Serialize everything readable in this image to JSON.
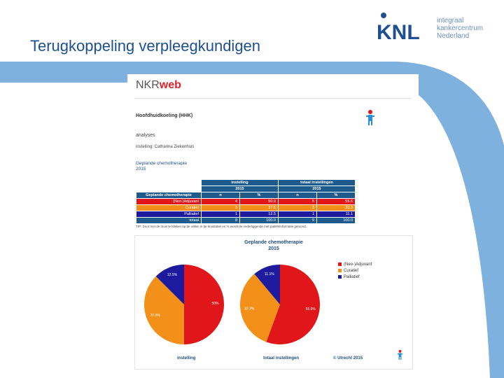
{
  "slide": {
    "title": "Terugkoppeling verpleegkundigen"
  },
  "logo": {
    "mark": "KNL",
    "lines": [
      "integraal",
      "kankercentrum",
      "Nederland"
    ]
  },
  "doc": {
    "brand_plain": "NKR",
    "brand_bold": "web",
    "heading": "Hoofdhuidkoeling (HHK)",
    "subheading": "analyses",
    "instelling_line": "instelling: Catharina Ziekenhuis",
    "section_title": "Geplande chemotherapie",
    "section_year": "2015",
    "tip": "TIP: Door met de muis te klikken op de cellen in de kruistabel en % wordt de onderliggende met patiëntinformatie getoond."
  },
  "table": {
    "group_headers": [
      "instelling",
      "totaal instellingen"
    ],
    "year_headers": [
      "2015",
      "2015"
    ],
    "row_header": "Geplande chemotherapie",
    "col_headers": [
      "n",
      "%",
      "n",
      "%"
    ],
    "rows": [
      {
        "label": "(Neo-)Adjuvant",
        "cells": [
          "4",
          "50.0",
          "5",
          "55.6"
        ]
      },
      {
        "label": "Curatief",
        "cells": [
          "3",
          "37.5",
          "3",
          "33.3"
        ]
      },
      {
        "label": "Palliatief",
        "cells": [
          "1",
          "12.5",
          "1",
          "11.1"
        ]
      },
      {
        "label": "totaal",
        "cells": [
          "8",
          "100.0",
          "9",
          "100.0"
        ]
      }
    ]
  },
  "colors": {
    "neo": "#e0161b",
    "curatief": "#f39019",
    "palliatief": "#1d1a9d",
    "header": "#1e5b8c"
  },
  "chart_data": {
    "type": "pie",
    "title": "Geplande chemotherapie",
    "subtitle": "2015",
    "legend": [
      "(Neo-)Adjuvant",
      "Curatief",
      "Palliatief"
    ],
    "legend_position": "right",
    "pies": [
      {
        "caption": "instelling",
        "values": [
          50.0,
          37.5,
          12.5
        ],
        "labels": [
          "50%",
          "37.5%",
          "12.5%"
        ]
      },
      {
        "caption": "totaal instellingen",
        "values": [
          55.6,
          33.3,
          11.1
        ],
        "labels": [
          "55.6%",
          "33.3%",
          "11.1%"
        ]
      }
    ],
    "footer": "© Utrecht 2015"
  }
}
